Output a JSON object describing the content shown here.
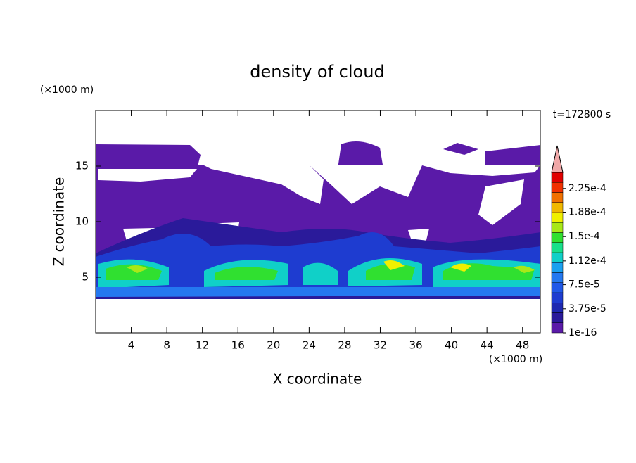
{
  "chart_data": {
    "type": "contour",
    "title": "density of cloud",
    "xlabel": "X coordinate",
    "ylabel": "Z coordinate",
    "x_unit": "(×1000 m)",
    "y_unit": "(×1000 m)",
    "annotation": "t=172800 s",
    "xlim": [
      0,
      50
    ],
    "xticks": [
      4,
      8,
      12,
      16,
      20,
      24,
      28,
      32,
      36,
      40,
      44,
      48
    ],
    "ylim": [
      0,
      20
    ],
    "yticks": [
      5,
      10,
      15
    ],
    "colorbar": {
      "lim": [
        0,
        0.00025
      ],
      "colors": [
        "#5a1aa8",
        "#2a1a9a",
        "#1e28b0",
        "#1e3cd0",
        "#2058e8",
        "#2478f0",
        "#1aa0f0",
        "#10d0c8",
        "#18e08a",
        "#30e030",
        "#a8e818",
        "#f0f000",
        "#f0b800",
        "#f07000",
        "#f03000",
        "#e00000"
      ],
      "over_color": "#f0a8a8",
      "ticks": [
        {
          "value": 1e-16,
          "label": "1e-16"
        },
        {
          "value": 3.75e-05,
          "label": "3.75e-5"
        },
        {
          "value": 7.5e-05,
          "label": "7.5e-5"
        },
        {
          "value": 0.000112,
          "label": "1.12e-4"
        },
        {
          "value": 0.00015,
          "label": "1.5e-4"
        },
        {
          "value": 0.000188,
          "label": "1.88e-4"
        },
        {
          "value": 0.000225,
          "label": "2.25e-4"
        }
      ]
    }
  }
}
